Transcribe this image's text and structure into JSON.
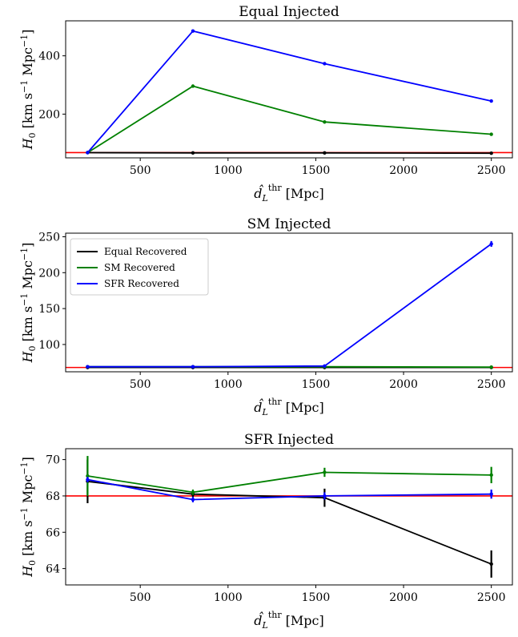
{
  "chart_data": [
    {
      "type": "line",
      "title": "Equal Injected",
      "xlabel": "$\\hat{d}_L^{\\,\\mathrm{thr}}$ [Mpc]",
      "ylabel": "$H_0$ [km s$^{-1}$ Mpc$^{-1}$]",
      "xlim": [
        75,
        2620
      ],
      "ylim": [
        50,
        520
      ],
      "xticks": [
        500,
        1000,
        1500,
        2000,
        2500
      ],
      "yticks": [
        200,
        400
      ],
      "ref_line": 68,
      "legend": false,
      "series": [
        {
          "name": "Equal Recovered",
          "color": "#000000",
          "x": [
            200,
            800,
            1550,
            2500
          ],
          "y": [
            68,
            67,
            67,
            66
          ],
          "err": [
            0,
            0,
            0,
            0
          ]
        },
        {
          "name": "SM Recovered",
          "color": "#008000",
          "x": [
            200,
            800,
            1550,
            2500
          ],
          "y": [
            68,
            296,
            173,
            131
          ],
          "err": [
            0,
            0,
            0,
            0
          ]
        },
        {
          "name": "SFR Recovered",
          "color": "#0000ff",
          "x": [
            200,
            800,
            1550,
            2500
          ],
          "y": [
            68,
            485,
            373,
            245
          ],
          "err": [
            0,
            0,
            0,
            0
          ]
        }
      ]
    },
    {
      "type": "line",
      "title": "SM Injected",
      "xlabel": "$\\hat{d}_L^{\\,\\mathrm{thr}}$ [Mpc]",
      "ylabel": "$H_0$ [km s$^{-1}$ Mpc$^{-1}$]",
      "xlim": [
        75,
        2620
      ],
      "ylim": [
        62,
        255
      ],
      "xticks": [
        500,
        1000,
        1500,
        2000,
        2500
      ],
      "yticks": [
        100,
        150,
        200,
        250
      ],
      "ref_line": 68,
      "legend": true,
      "legend_position": "upper-left",
      "series": [
        {
          "name": "Equal Recovered",
          "color": "#000000",
          "x": [
            200,
            800,
            1550,
            2500
          ],
          "y": [
            68,
            68,
            68,
            68
          ],
          "err": [
            0,
            0,
            0,
            0
          ]
        },
        {
          "name": "SM Recovered",
          "color": "#008000",
          "x": [
            200,
            800,
            1550,
            2500
          ],
          "y": [
            69,
            69,
            69,
            68.5
          ],
          "err": [
            0.5,
            0.5,
            0.5,
            0.5
          ]
        },
        {
          "name": "SFR Recovered",
          "color": "#0000ff",
          "x": [
            200,
            800,
            1550,
            2500
          ],
          "y": [
            69,
            69,
            70,
            240
          ],
          "err": [
            0.5,
            0.5,
            0.5,
            4
          ]
        }
      ]
    },
    {
      "type": "line",
      "title": "SFR Injected",
      "xlabel": "$\\hat{d}_L^{\\,\\mathrm{thr}}$ [Mpc]",
      "ylabel": "$H_0$ [km s$^{-1}$ Mpc$^{-1}$]",
      "xlim": [
        75,
        2620
      ],
      "ylim": [
        63.1,
        70.6
      ],
      "xticks": [
        500,
        1000,
        1500,
        2000,
        2500
      ],
      "yticks": [
        64,
        66,
        68,
        70
      ],
      "ref_line": 68,
      "legend": false,
      "series": [
        {
          "name": "Equal Recovered",
          "color": "#000000",
          "x": [
            200,
            800,
            1550,
            2500
          ],
          "y": [
            68.8,
            68.1,
            67.9,
            64.25
          ],
          "err": [
            1.2,
            0.15,
            0.5,
            0.75
          ]
        },
        {
          "name": "SM Recovered",
          "color": "#008000",
          "x": [
            200,
            800,
            1550,
            2500
          ],
          "y": [
            69.1,
            68.2,
            69.3,
            69.15
          ],
          "err": [
            1.1,
            0.15,
            0.25,
            0.45
          ]
        },
        {
          "name": "SFR Recovered",
          "color": "#0000ff",
          "x": [
            200,
            800,
            1550,
            2500
          ],
          "y": [
            68.9,
            67.8,
            68.0,
            68.1
          ],
          "err": [
            0.15,
            0.15,
            0.2,
            0.25
          ]
        }
      ]
    }
  ]
}
